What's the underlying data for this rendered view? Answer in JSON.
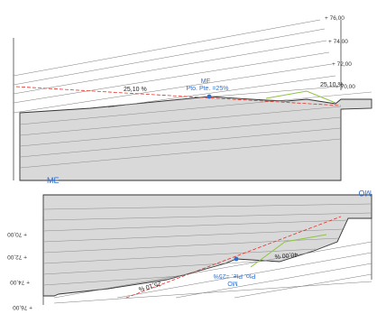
{
  "top_section": {
    "levels": [
      "+ 76,00",
      "+ 74,00",
      "+ 72,00",
      "+ 70,00"
    ],
    "slope_left": "25,10 %",
    "slope_right": "25,10 %",
    "marker_line1": "ME",
    "marker_line2": "Pto. Pte. =25%",
    "corner_label": "ME"
  },
  "bottom_section": {
    "levels": [
      "+ 70,00",
      "+ 72,00",
      "+ 74,00",
      "+ 76,00"
    ],
    "slope_left": "25,10 %",
    "slope_right": "40,00 %",
    "marker_line1": "MO",
    "marker_line2": "Pto. Pte. =25%",
    "corner_label": "MO"
  },
  "colors": {
    "ground_fill": "#d9d9d9",
    "slope_line": "#e0352b",
    "accent": "#2f6fd0",
    "green_line": "#8cc63f"
  }
}
